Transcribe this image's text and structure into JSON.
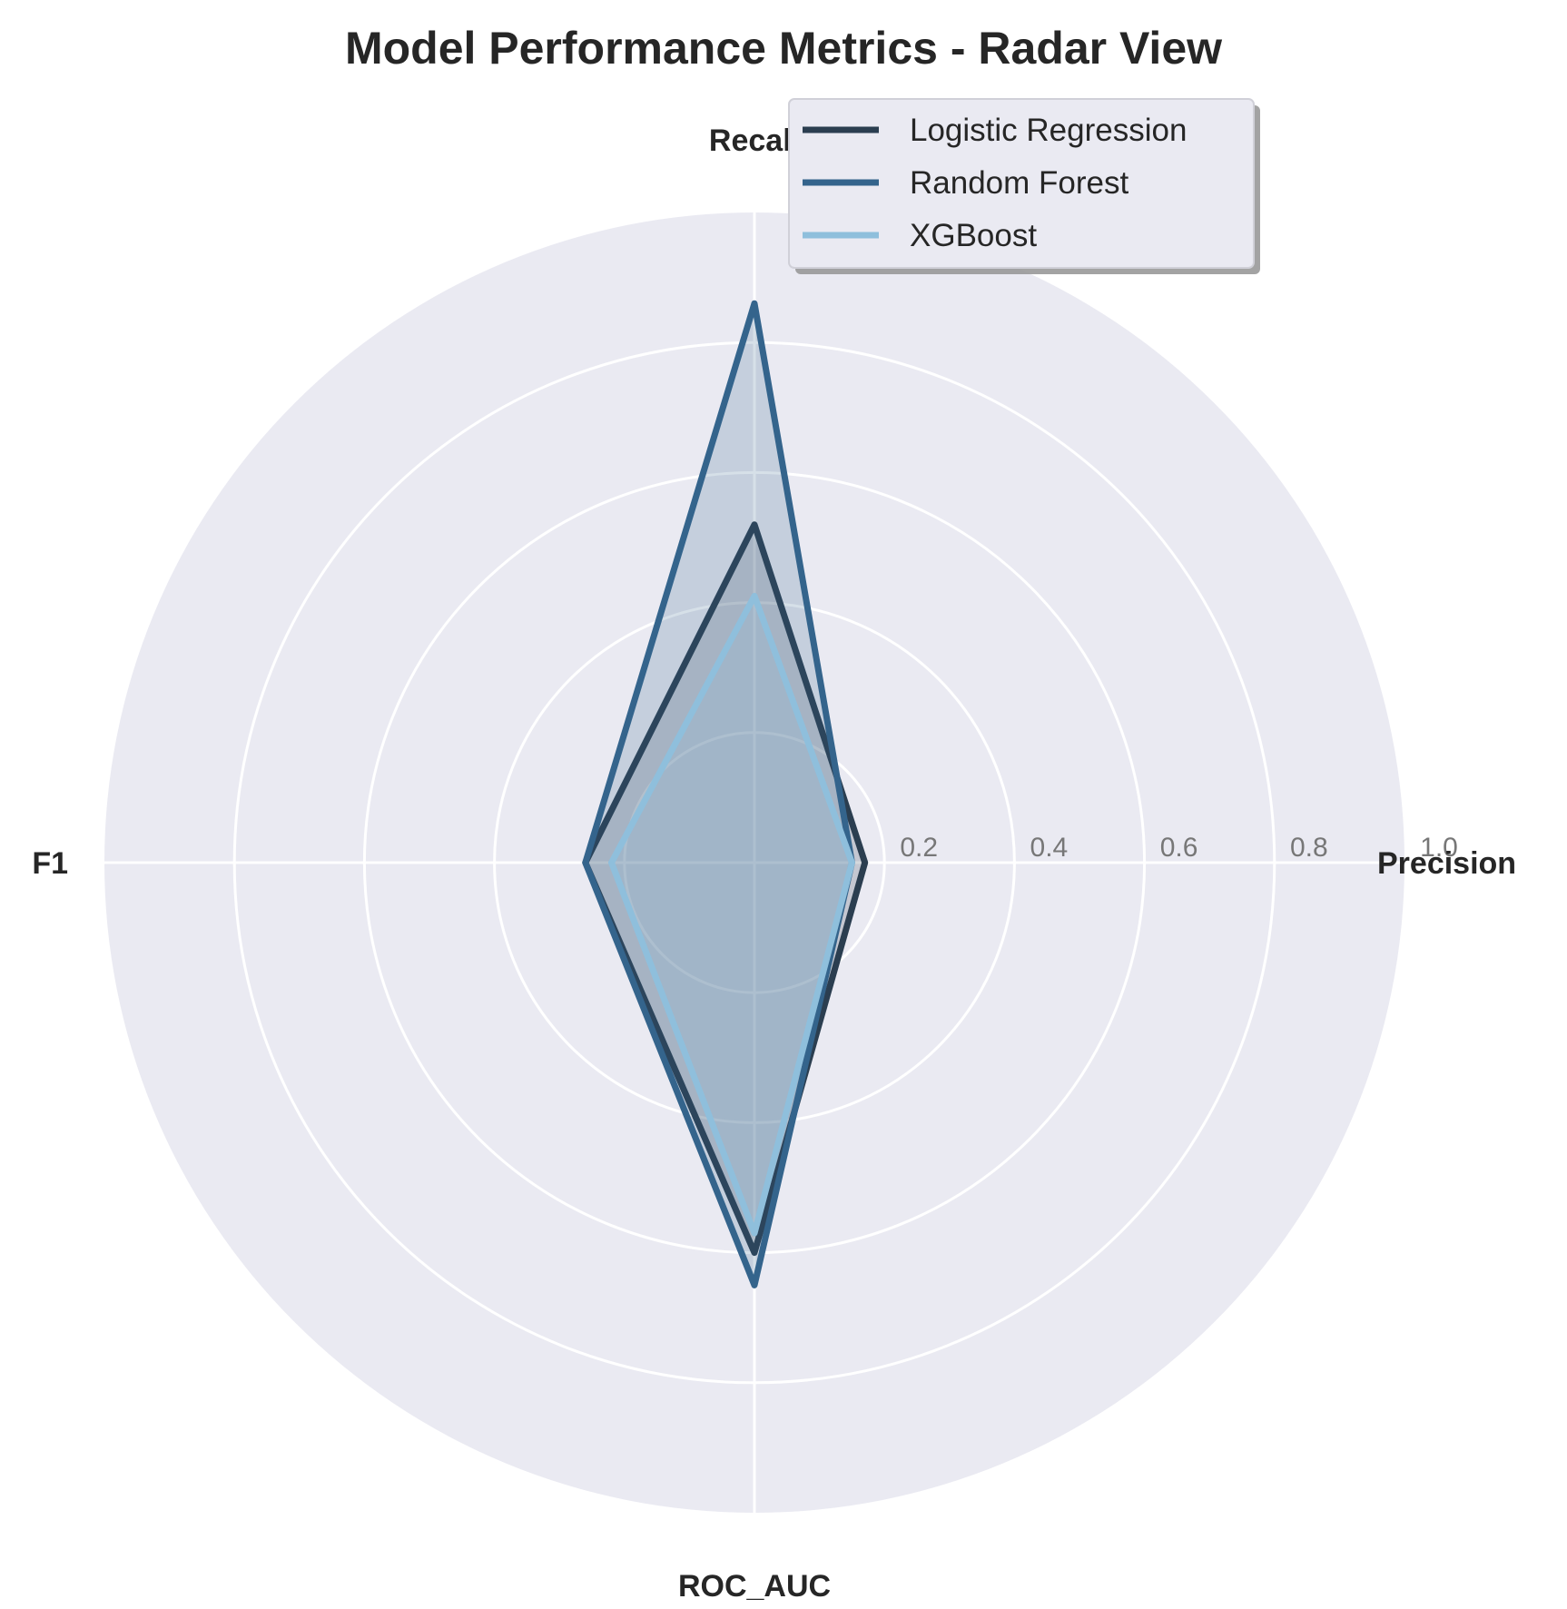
{
  "chart_data": {
    "type": "radar",
    "title": "Model Performance Metrics - Radar View",
    "categories": [
      "Precision",
      "Recall",
      "F1",
      "ROC_AUC"
    ],
    "radial_ticks": [
      "0.2",
      "0.4",
      "0.6",
      "0.8",
      "1.0"
    ],
    "rlim": [
      0,
      1.0
    ],
    "grid": true,
    "legend_position": "top-right",
    "series": [
      {
        "name": "Logistic Regression",
        "values": [
          0.17,
          0.52,
          0.26,
          0.6
        ],
        "color": "#2b3e50"
      },
      {
        "name": "Random Forest",
        "values": [
          0.15,
          0.86,
          0.26,
          0.65
        ],
        "color": "#34648c"
      },
      {
        "name": "XGBoost",
        "values": [
          0.15,
          0.41,
          0.22,
          0.57
        ],
        "color": "#8fbfdc"
      }
    ]
  }
}
